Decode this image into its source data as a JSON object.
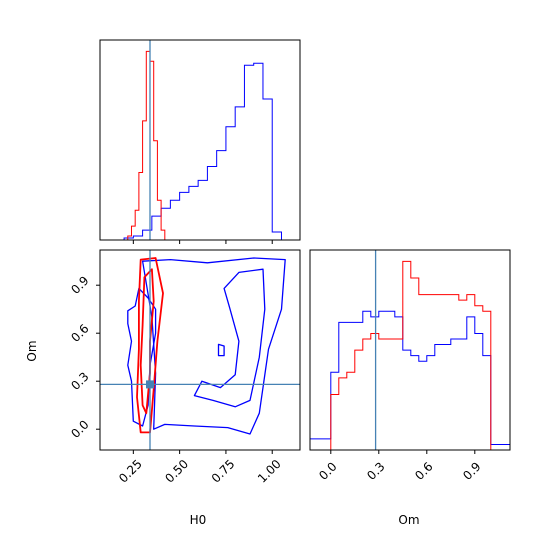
{
  "colors": {
    "blue": "#0000ff",
    "red": "#ff0000",
    "truth": "#4682b4"
  },
  "chart_data": {
    "type": "corner",
    "parameters": [
      "H0",
      "Om"
    ],
    "truths": {
      "H0": 0.34,
      "Om": 0.28
    },
    "xlabels": {
      "H0": "H0",
      "Om": "Om"
    },
    "ylabel": "Om",
    "ranges": {
      "H0": [
        0.07,
        1.15
      ],
      "Om": [
        -0.13,
        1.12
      ]
    },
    "ticks": {
      "H0": {
        "values": [
          0.25,
          0.5,
          0.75,
          1.0
        ],
        "labels": [
          "0.25",
          "0.50",
          "0.75",
          "1.00"
        ]
      },
      "Om": {
        "values": [
          0.0,
          0.3,
          0.6,
          0.9
        ],
        "labels": [
          "0.0",
          "0.3",
          "0.6",
          "0.9"
        ]
      }
    },
    "panels": {
      "H0_hist": {
        "type": "step-histogram",
        "series": [
          {
            "color": "blue",
            "edges": [
              0.15,
              0.2,
              0.25,
              0.3,
              0.35,
              0.4,
              0.45,
              0.5,
              0.55,
              0.6,
              0.65,
              0.7,
              0.75,
              0.8,
              0.85,
              0.9,
              0.95,
              1.0,
              1.05,
              1.1
            ],
            "values": [
              0,
              1,
              2,
              5,
              12,
              16,
              20,
              24,
              27,
              30,
              37,
              45,
              57,
              67,
              88,
              89,
              71,
              4,
              0
            ]
          },
          {
            "color": "red",
            "edges": [
              0.2,
              0.22,
              0.24,
              0.26,
              0.28,
              0.3,
              0.32,
              0.34,
              0.36,
              0.38,
              0.4,
              0.42
            ],
            "values": [
              0,
              2,
              7,
              15,
              34,
              60,
              95,
              90,
              50,
              20,
              5
            ]
          }
        ]
      },
      "Om_hist": {
        "type": "step-histogram",
        "series": [
          {
            "color": "blue",
            "edges": [
              -0.13,
              -0.05,
              0.0,
              0.05,
              0.1,
              0.15,
              0.2,
              0.25,
              0.3,
              0.35,
              0.4,
              0.45,
              0.5,
              0.55,
              0.6,
              0.65,
              0.7,
              0.75,
              0.8,
              0.85,
              0.9,
              0.95,
              1.0,
              1.05,
              1.12
            ],
            "values": [
              2,
              2,
              14,
              23,
              23,
              23,
              25,
              24,
              25,
              25,
              24,
              18,
              17,
              16,
              17,
              19,
              19,
              20,
              20,
              24,
              21,
              17,
              1,
              1
            ]
          },
          {
            "color": "red",
            "edges": [
              0.0,
              0.05,
              0.1,
              0.15,
              0.2,
              0.25,
              0.3,
              0.35,
              0.4,
              0.45,
              0.5,
              0.55,
              0.6,
              0.65,
              0.7,
              0.75,
              0.8,
              0.85,
              0.9,
              0.95,
              1.0
            ],
            "values": [
              10,
              13,
              14,
              18,
              20,
              21,
              20,
              20,
              20,
              34,
              31,
              28,
              28,
              28,
              28,
              28,
              27,
              28,
              26,
              25
            ]
          }
        ]
      },
      "H0_Om_contours": {
        "type": "contour",
        "series": [
          {
            "color": "blue",
            "paths": [
              [
                [
                  0.3,
                  1.05
                ],
                [
                  0.45,
                  1.06
                ],
                [
                  0.65,
                  1.04
                ],
                [
                  0.9,
                  1.07
                ],
                [
                  1.07,
                  1.06
                ],
                [
                  1.05,
                  0.75
                ],
                [
                  0.98,
                  0.5
                ],
                [
                  0.93,
                  0.1
                ],
                [
                  0.88,
                  -0.03
                ],
                [
                  0.76,
                  0.01
                ],
                [
                  0.58,
                  0.02
                ],
                [
                  0.42,
                  0.03
                ],
                [
                  0.36,
                  0.0
                ],
                [
                  0.37,
                  0.35
                ],
                [
                  0.35,
                  0.7
                ],
                [
                  0.3,
                  1.05
                ]
              ],
              [
                [
                  0.82,
                  0.98
                ],
                [
                  0.95,
                  1.0
                ],
                [
                  0.96,
                  0.75
                ],
                [
                  0.93,
                  0.45
                ],
                [
                  0.88,
                  0.18
                ],
                [
                  0.8,
                  0.14
                ],
                [
                  0.68,
                  0.18
                ],
                [
                  0.58,
                  0.21
                ],
                [
                  0.62,
                  0.3
                ],
                [
                  0.72,
                  0.26
                ],
                [
                  0.8,
                  0.34
                ],
                [
                  0.82,
                  0.55
                ],
                [
                  0.77,
                  0.76
                ],
                [
                  0.74,
                  0.88
                ],
                [
                  0.82,
                  0.98
                ]
              ],
              [
                [
                  0.71,
                  0.53
                ],
                [
                  0.74,
                  0.52
                ],
                [
                  0.74,
                  0.46
                ],
                [
                  0.71,
                  0.46
                ],
                [
                  0.71,
                  0.53
                ]
              ],
              [
                [
                  0.22,
                  0.66
                ],
                [
                  0.22,
                  0.74
                ],
                [
                  0.26,
                  0.77
                ],
                [
                  0.28,
                  0.88
                ],
                [
                  0.33,
                  0.82
                ],
                [
                  0.37,
                  0.75
                ],
                [
                  0.37,
                  0.6
                ],
                [
                  0.34,
                  0.4
                ],
                [
                  0.33,
                  0.15
                ],
                [
                  0.3,
                  0.02
                ],
                [
                  0.25,
                  0.05
                ],
                [
                  0.24,
                  0.3
                ],
                [
                  0.22,
                  0.4
                ],
                [
                  0.24,
                  0.55
                ],
                [
                  0.22,
                  0.66
                ]
              ]
            ]
          },
          {
            "color": "red",
            "paths": [
              [
                [
                  0.29,
                  1.06
                ],
                [
                  0.37,
                  1.07
                ],
                [
                  0.41,
                  0.85
                ],
                [
                  0.38,
                  0.55
                ],
                [
                  0.36,
                  0.25
                ],
                [
                  0.34,
                  -0.02
                ],
                [
                  0.29,
                  -0.02
                ],
                [
                  0.27,
                  0.2
                ],
                [
                  0.28,
                  0.5
                ],
                [
                  0.28,
                  0.8
                ],
                [
                  0.29,
                  1.06
                ]
              ],
              [
                [
                  0.31,
                  0.95
                ],
                [
                  0.35,
                  1.0
                ],
                [
                  0.36,
                  0.8
                ],
                [
                  0.34,
                  0.55
                ],
                [
                  0.34,
                  0.35
                ],
                [
                  0.32,
                  0.1
                ],
                [
                  0.3,
                  0.15
                ],
                [
                  0.29,
                  0.4
                ],
                [
                  0.3,
                  0.65
                ],
                [
                  0.31,
                  0.95
                ]
              ]
            ]
          }
        ]
      }
    }
  }
}
